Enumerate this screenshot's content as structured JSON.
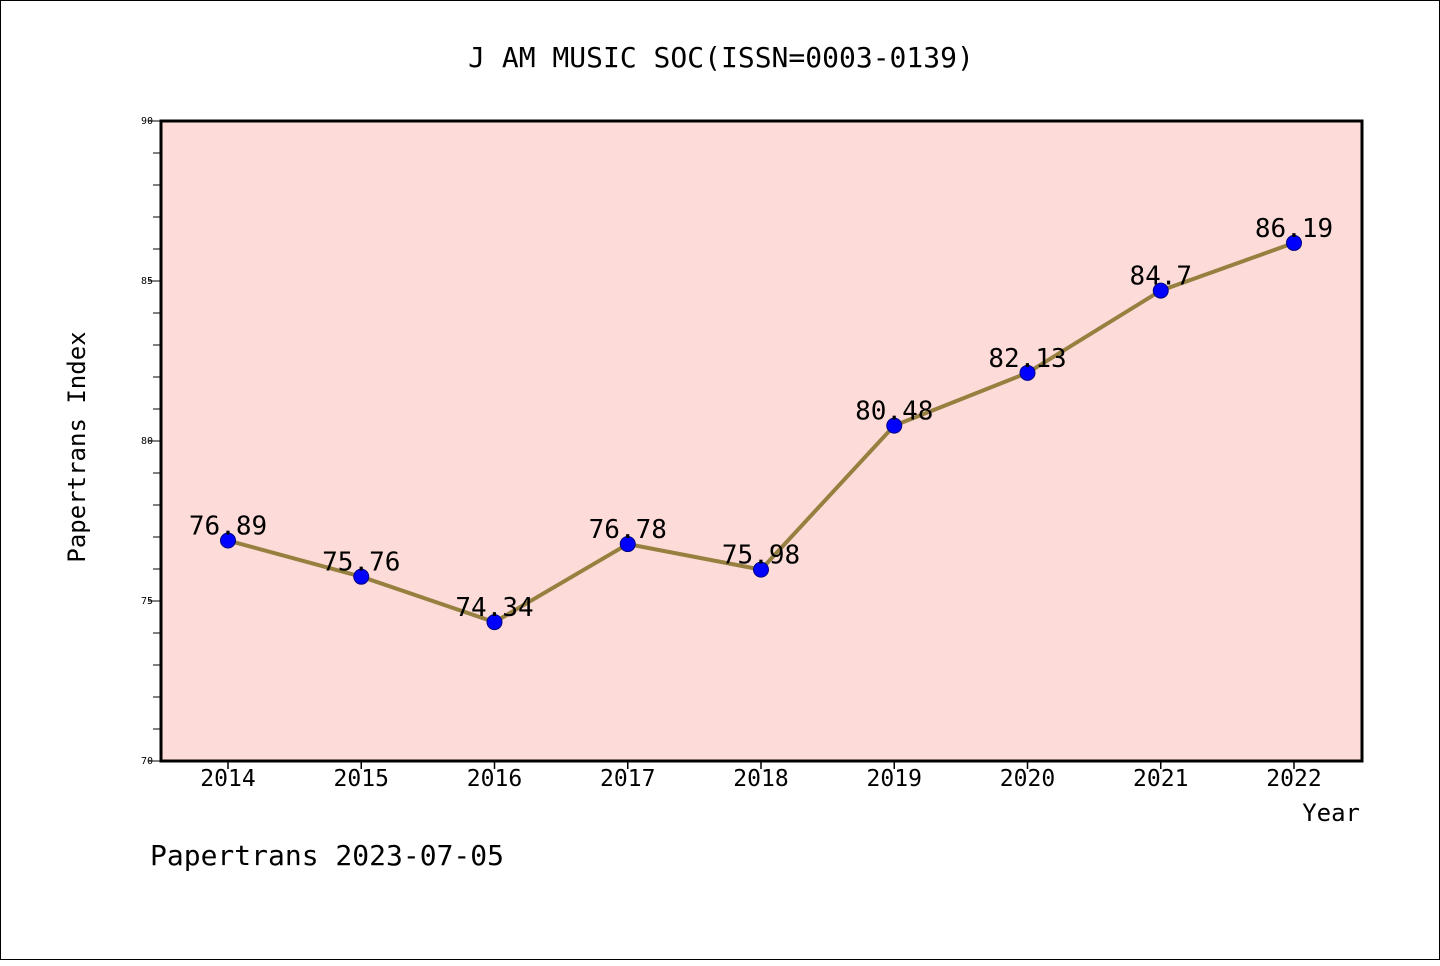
{
  "chart_data": {
    "type": "line",
    "title": "J AM MUSIC SOC(ISSN=0003-0139)",
    "xlabel": "Year",
    "ylabel": "Papertrans Index",
    "x": [
      "2014",
      "2015",
      "2016",
      "2017",
      "2018",
      "2019",
      "2020",
      "2021",
      "2022"
    ],
    "values": [
      76.89,
      75.76,
      74.34,
      76.78,
      75.98,
      80.48,
      82.13,
      84.7,
      86.19
    ],
    "data_labels": [
      "76.89",
      "75.76",
      "74.34",
      "76.78",
      "75.98",
      "80.48",
      "82.13",
      "84.7",
      "86.19"
    ],
    "ylim": [
      70,
      90
    ],
    "yticks": [
      "70",
      "75",
      "80",
      "85",
      "90"
    ],
    "grid": false,
    "colors": {
      "plot_background": "#fddbd8",
      "line": "#968040",
      "marker": "#0000ff",
      "marker_edge": "#000080"
    }
  },
  "footer": "Papertrans 2023-07-05"
}
